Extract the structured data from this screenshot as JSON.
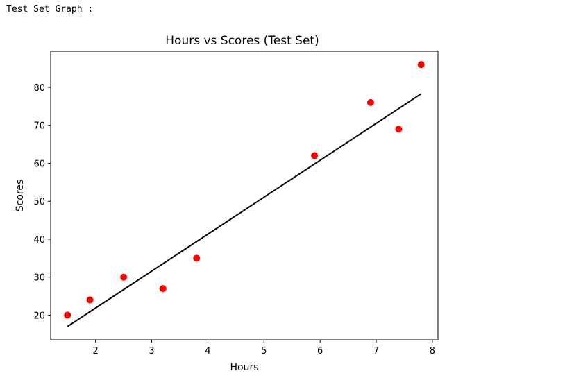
{
  "output_caption": "Test Set Graph :",
  "chart_data": {
    "type": "scatter",
    "title": "Hours vs Scores (Test Set)",
    "xlabel": "Hours",
    "ylabel": "Scores",
    "xlim": [
      1.2,
      8.1
    ],
    "ylim": [
      13.5,
      89.5
    ],
    "xticks": [
      2,
      3,
      4,
      5,
      6,
      7,
      8
    ],
    "yticks": [
      20,
      30,
      40,
      50,
      60,
      70,
      80
    ],
    "grid": false,
    "points": {
      "color": "#ff0000",
      "x": [
        1.5,
        1.9,
        2.5,
        3.2,
        3.8,
        5.9,
        6.9,
        7.4,
        7.8
      ],
      "y": [
        20,
        24,
        30,
        27,
        35,
        62,
        76,
        69,
        86
      ]
    },
    "regression_line": {
      "color": "#000000",
      "x": [
        1.5,
        7.8
      ],
      "y": [
        17.0,
        78.3
      ]
    }
  }
}
